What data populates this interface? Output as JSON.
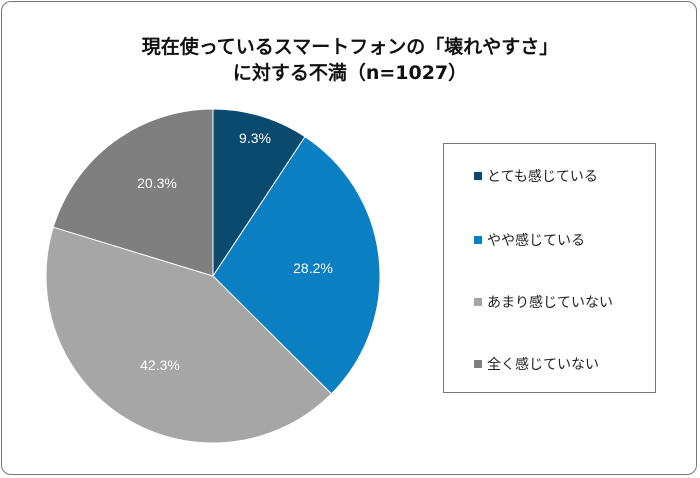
{
  "chart_data": {
    "type": "pie",
    "title": "現在使っているスマートフォンの「壊れやすさ」",
    "title_line2": "に対する不満（n=1027）",
    "start": "12 o'clock, clockwise",
    "legend_position": "right",
    "slices": [
      {
        "label": "とても感じている",
        "value": 9.3,
        "display": "9.3%",
        "color": "#0b4a6f"
      },
      {
        "label": "やや感じている",
        "value": 28.2,
        "display": "28.2%",
        "color": "#0a7fc2"
      },
      {
        "label": "あまり感じていない",
        "value": 42.3,
        "display": "42.3%",
        "color": "#a6a6a6"
      },
      {
        "label": "全く感じていない",
        "value": 20.3,
        "display": "20.3%",
        "color": "#7f7f7f"
      }
    ]
  }
}
